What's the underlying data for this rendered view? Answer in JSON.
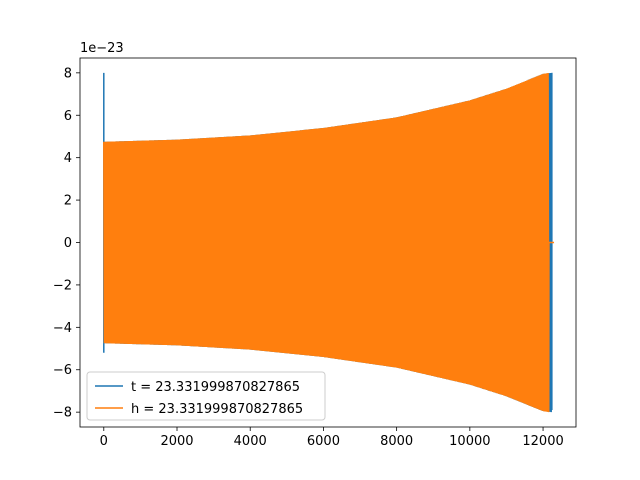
{
  "chart_data": {
    "type": "line",
    "title": "",
    "xlabel": "",
    "ylabel": "",
    "offset_text": "1e−23",
    "xlim": [
      -650,
      12900
    ],
    "ylim": [
      -8.7,
      8.7
    ],
    "xticks": [
      0,
      2000,
      4000,
      6000,
      8000,
      10000,
      12000
    ],
    "xtick_labels": [
      "0",
      "2000",
      "4000",
      "6000",
      "8000",
      "10000",
      "12000"
    ],
    "yticks": [
      -8,
      -6,
      -4,
      -2,
      0,
      2,
      4,
      6,
      8
    ],
    "ytick_labels": [
      "−8",
      "−6",
      "−4",
      "−2",
      "0",
      "2",
      "4",
      "6",
      "8"
    ],
    "grid": false,
    "legend_position": "lower-left",
    "series": [
      {
        "name": "t = 23.331999870827865",
        "color": "#1f77b4",
        "n_points": 12280,
        "envelope_x": [
          0,
          2000,
          4000,
          6000,
          8000,
          10000,
          11000,
          12000,
          12240
        ],
        "envelope_upper": [
          4.75,
          4.85,
          5.05,
          5.4,
          5.9,
          6.7,
          7.25,
          7.95,
          8.0
        ],
        "envelope_lower": [
          -4.75,
          -4.85,
          -5.05,
          -5.4,
          -5.9,
          -6.7,
          -7.25,
          -7.95,
          -8.0
        ],
        "start_spike": [
          8.0,
          -5.2
        ],
        "end_spike": [
          8.0,
          -7.9
        ]
      },
      {
        "name": "h = 23.331999870827865",
        "color": "#ff7f0e",
        "n_points": 12280,
        "envelope_x": [
          0,
          2000,
          4000,
          6000,
          8000,
          10000,
          11000,
          12000,
          12160
        ],
        "envelope_upper": [
          4.75,
          4.85,
          5.05,
          5.4,
          5.9,
          6.7,
          7.25,
          7.95,
          8.0
        ],
        "envelope_lower": [
          -4.75,
          -4.85,
          -5.05,
          -5.4,
          -5.9,
          -6.7,
          -7.25,
          -7.95,
          -8.0
        ],
        "tail_value": 0
      }
    ]
  }
}
